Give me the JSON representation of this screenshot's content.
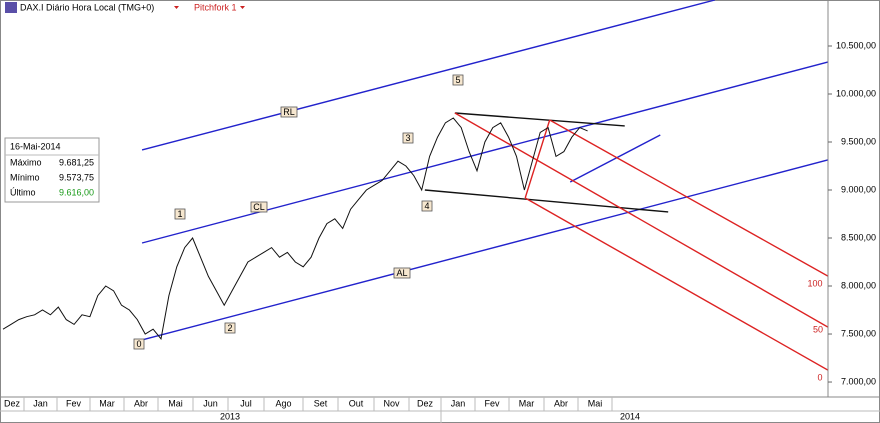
{
  "chart_data": {
    "type": "line",
    "title": "DAX.I Diário Hora Local (TMG+0)",
    "study": "Pitchfork 1",
    "months": [
      "Dez",
      "Jan",
      "Fev",
      "Mar",
      "Abr",
      "Mai",
      "Jun",
      "Jul",
      "Ago",
      "Set",
      "Out",
      "Nov",
      "Dez",
      "Jan",
      "Fev",
      "Mar",
      "Abr",
      "Mai"
    ],
    "years": [
      "2013",
      "2014"
    ],
    "ylim": [
      6844,
      10979
    ],
    "yticks": [
      {
        "value": 7000,
        "label": "7.000,00"
      },
      {
        "value": 7500,
        "label": "7.500,00"
      },
      {
        "value": 8000,
        "label": "8.000,00"
      },
      {
        "value": 8500,
        "label": "8.500,00"
      },
      {
        "value": 9000,
        "label": "9.000,00"
      },
      {
        "value": 9500,
        "label": "9.500,00"
      },
      {
        "value": 10000,
        "label": "10.000,00"
      },
      {
        "value": 10500,
        "label": "10.500,00"
      }
    ],
    "series": [
      {
        "name": "DAX.I",
        "color": "#111111",
        "values": [
          7550,
          7600,
          7650,
          7680,
          7700,
          7750,
          7700,
          7780,
          7650,
          7600,
          7700,
          7680,
          7900,
          8000,
          7950,
          7800,
          7750,
          7650,
          7500,
          7550,
          7450,
          7900,
          8200,
          8400,
          8500,
          8300,
          8100,
          7950,
          7800,
          7950,
          8100,
          8250,
          8300,
          8350,
          8400,
          8300,
          8350,
          8250,
          8200,
          8300,
          8500,
          8650,
          8700,
          8600,
          8800,
          8900,
          9000,
          9050,
          9100,
          9200,
          9300,
          9250,
          9150,
          9000,
          9350,
          9550,
          9700,
          9750,
          9650,
          9400,
          9200,
          9500,
          9650,
          9700,
          9550,
          9350,
          9000,
          9300,
          9600,
          9650,
          9350,
          9400,
          9550,
          9650,
          9616
        ]
      }
    ],
    "trendlines": [
      {
        "label": "RL",
        "color": "#2222cc",
        "start": [
          17.6,
          9417
        ],
        "end": [
          90.1,
          10979
        ]
      },
      {
        "label": "CL",
        "color": "#2222cc",
        "start": [
          17.6,
          8448
        ],
        "end": [
          104.4,
          10333
        ]
      },
      {
        "label": "AL",
        "color": "#2222cc",
        "start": [
          17.6,
          7438
        ],
        "end": [
          104.4,
          9313
        ]
      },
      {
        "color": "#2222cc",
        "start": [
          71.8,
          9083
        ],
        "end": [
          83.2,
          9573
        ]
      },
      {
        "color": "#111111",
        "start": [
          57.2,
          9802
        ],
        "end": [
          78.7,
          9667
        ]
      },
      {
        "color": "#111111",
        "start": [
          53.4,
          9000
        ],
        "end": [
          84.2,
          8771
        ]
      },
      {
        "label": "100",
        "color": "#dd2222",
        "start": [
          69.2,
          9729
        ],
        "end": [
          104.4,
          8104
        ]
      },
      {
        "label": "50",
        "color": "#dd2222",
        "start": [
          57.2,
          9802
        ],
        "end": [
          104.4,
          7573
        ]
      },
      {
        "label": "0",
        "color": "#dd2222",
        "start": [
          66.1,
          8917
        ],
        "end": [
          104.4,
          7125
        ]
      },
      {
        "color": "#dd2222",
        "start": [
          66.1,
          8917
        ],
        "end": [
          69.2,
          9729
        ]
      }
    ],
    "waves": [
      "0",
      "1",
      "2",
      "3",
      "4",
      "5"
    ],
    "info": {
      "date": "16-Mai-2014",
      "rows": [
        [
          "Máximo",
          "9.681,25"
        ],
        [
          "Mínimo",
          "9.573,75"
        ],
        [
          "Último",
          "9.616,00"
        ]
      ]
    }
  }
}
